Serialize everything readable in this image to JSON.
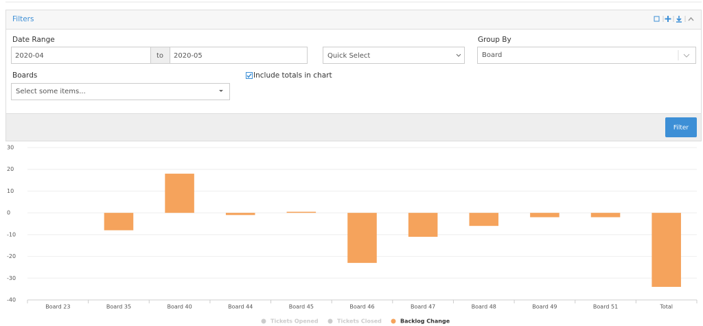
{
  "filters": {
    "title": "Filters",
    "date_range_label": "Date Range",
    "date_from": "2020-04",
    "to": "to",
    "date_to": "2020-05",
    "quick_select": "Quick Select",
    "group_by_label": "Group By",
    "group_by": "Board",
    "boards_label": "Boards",
    "boards_placeholder": "Select some items...",
    "include_totals": "Include totals in chart",
    "filter_button": "Filter"
  },
  "chart_data": {
    "type": "bar",
    "categories": [
      "Board 23",
      "Board 35",
      "Board 40",
      "Board 44",
      "Board 45",
      "Board 46",
      "Board 47",
      "Board 48",
      "Board 49",
      "Board 51",
      "Total"
    ],
    "series": [
      {
        "name": "Tickets Opened",
        "color": "#cccccc",
        "hidden": true
      },
      {
        "name": "Tickets Closed",
        "color": "#cccccc",
        "hidden": true
      },
      {
        "name": "Backlog Change",
        "color": "#f5a35c",
        "values": [
          0,
          -8,
          18,
          -1,
          0.5,
          -23,
          -11,
          -6,
          -2,
          -2,
          -34
        ]
      }
    ],
    "ylim": [
      -40,
      30
    ],
    "yticks": [
      -40,
      -30,
      -20,
      -10,
      0,
      10,
      20,
      30
    ],
    "grid": true
  }
}
